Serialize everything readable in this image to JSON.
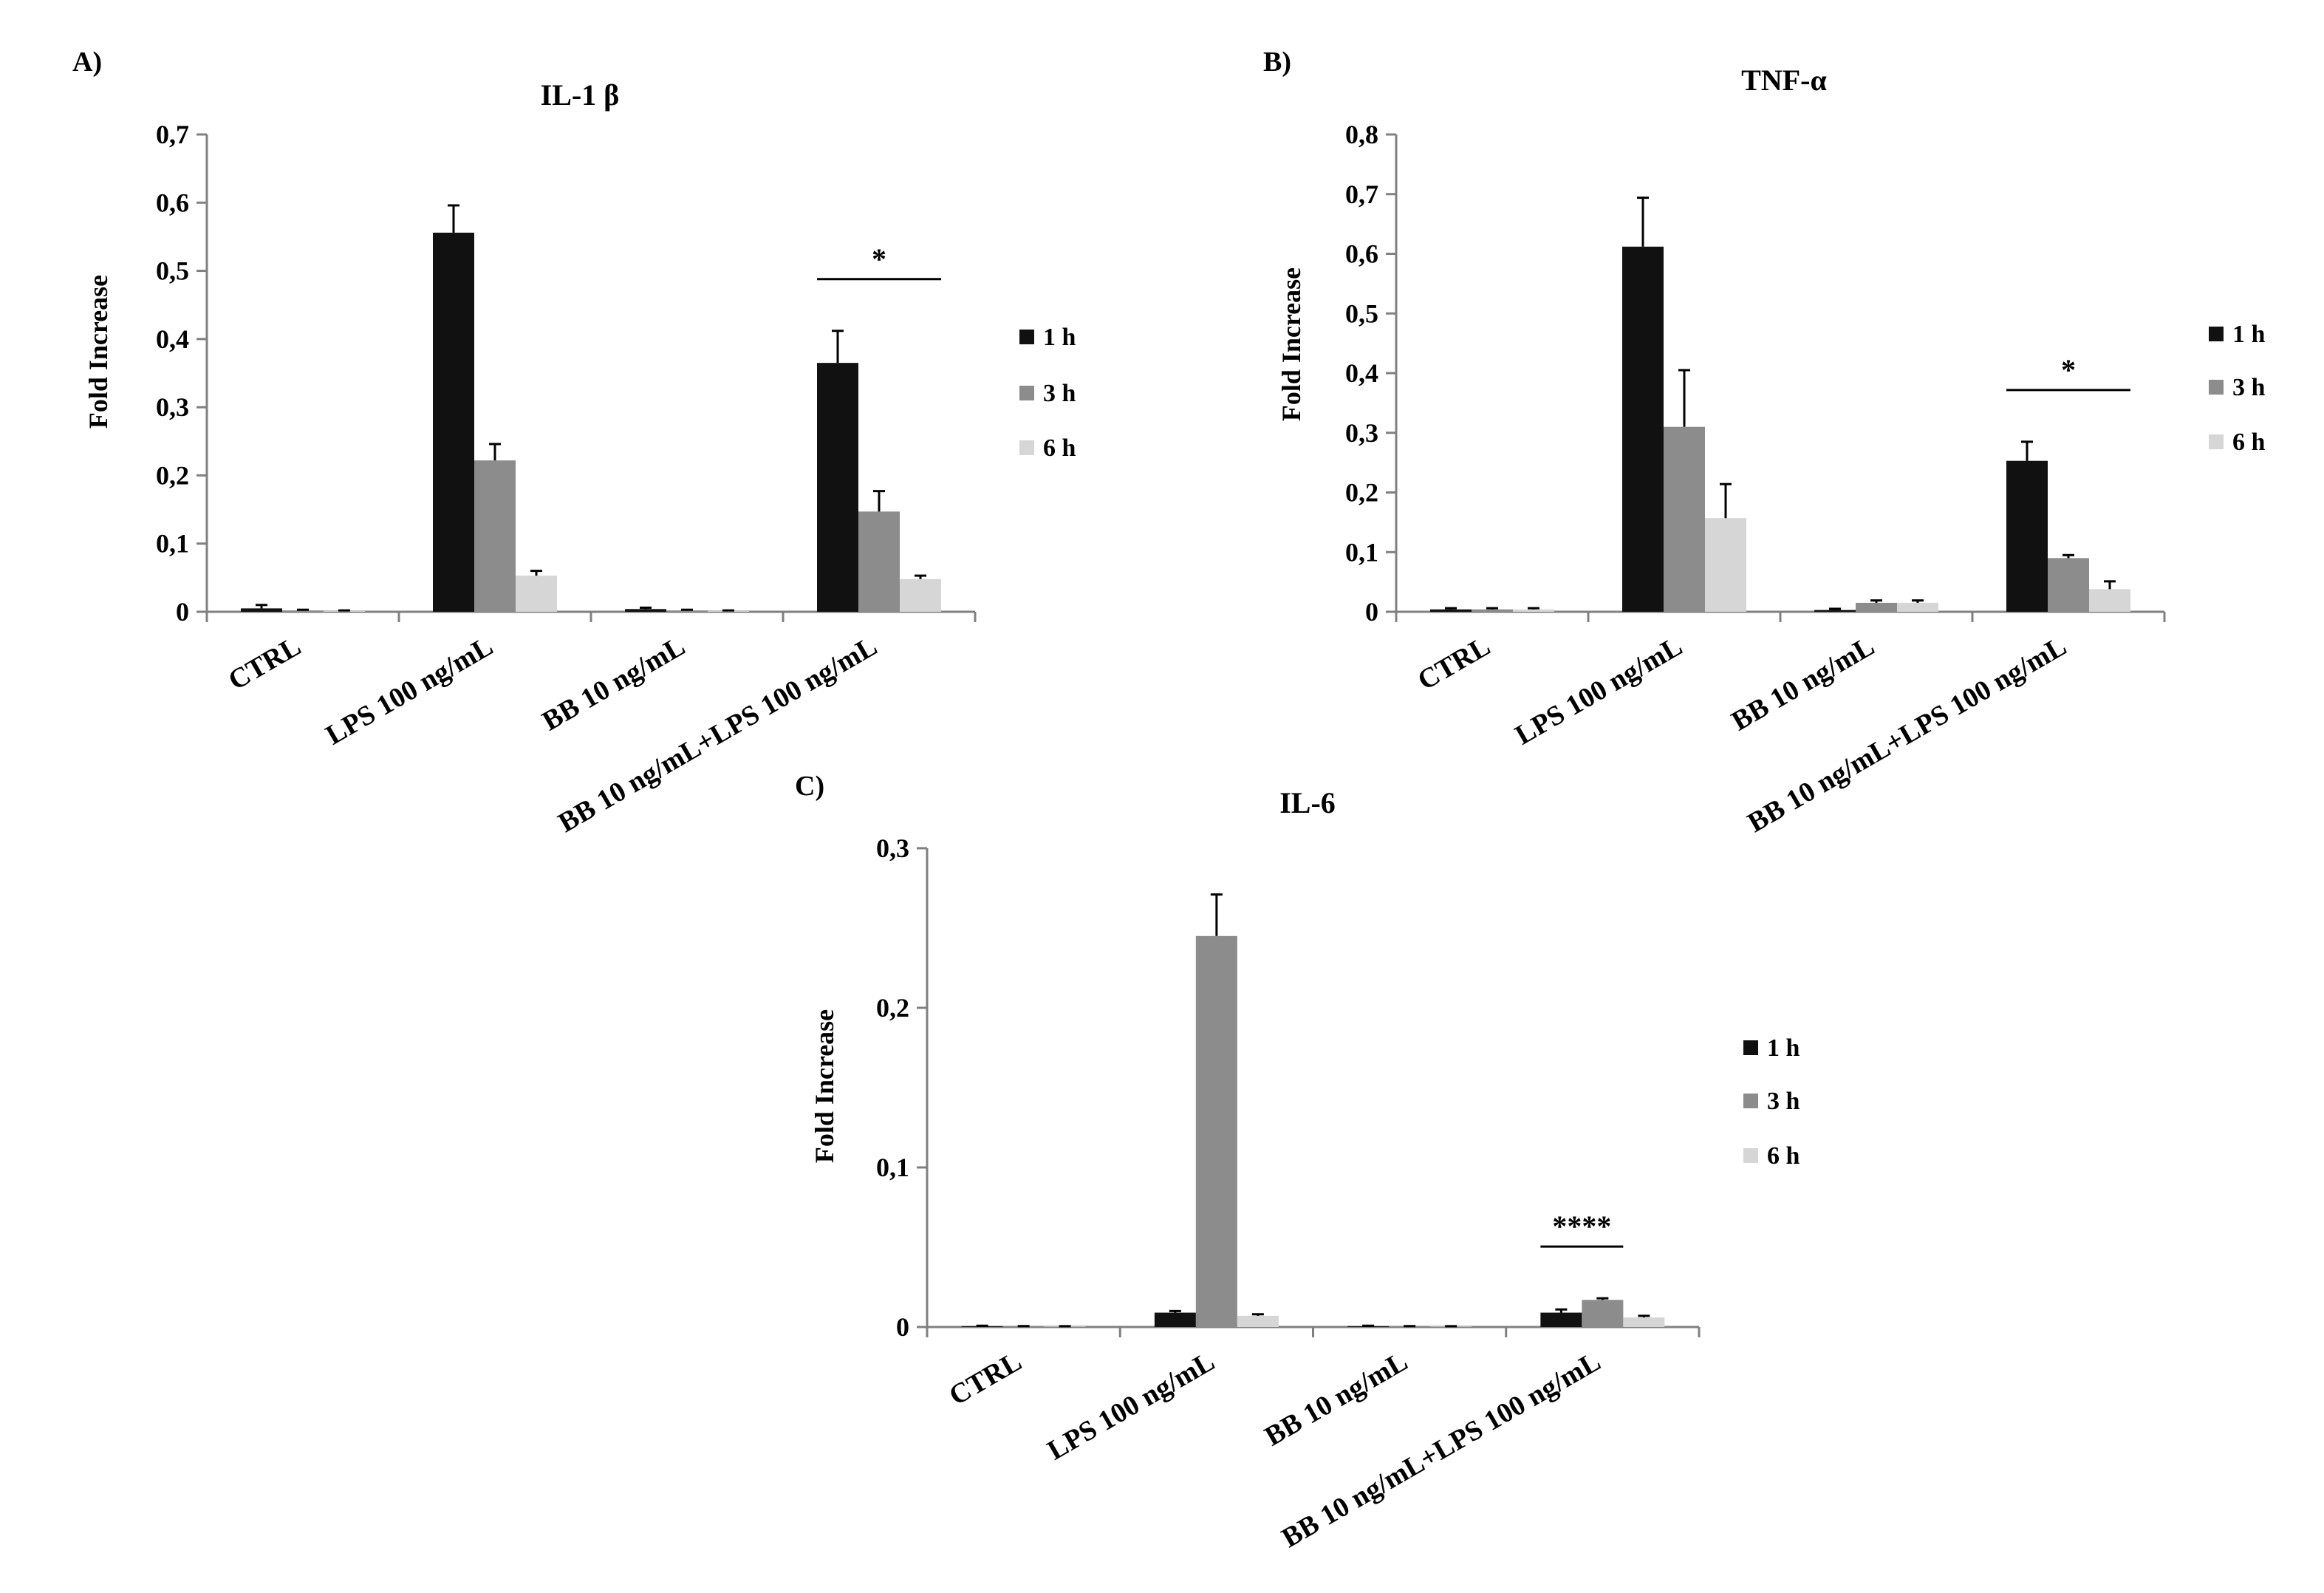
{
  "series_names": [
    "1 h",
    "3 h",
    "6 h"
  ],
  "colors": {
    "1 h": "#111111",
    "3 h": "#8c8c8c",
    "6 h": "#d6d6d6",
    "axis": "#808080",
    "text": "#000000"
  },
  "chart_data": [
    {
      "panel_label": "A)",
      "type": "bar",
      "title": "IL-1 β",
      "ylabel": "Fold Increase",
      "xlabel": "",
      "ylim": [
        0,
        0.7
      ],
      "yticks": [
        "0",
        "0,1",
        "0,2",
        "0,3",
        "0,4",
        "0,5",
        "0,6",
        "0,7"
      ],
      "categories": [
        "CTRL",
        "LPS 100 ng/mL",
        "BB 10 ng/mL",
        "BB 10 ng/mL+LPS 100 ng/mL"
      ],
      "series": [
        {
          "name": "1 h",
          "values": [
            0.005,
            0.556,
            0.004,
            0.365
          ],
          "errors": [
            0.005,
            0.04,
            0.002,
            0.047
          ]
        },
        {
          "name": "3 h",
          "values": [
            0.002,
            0.222,
            0.002,
            0.147
          ],
          "errors": [
            0.001,
            0.024,
            0.001,
            0.03
          ]
        },
        {
          "name": "6 h",
          "values": [
            0.001,
            0.053,
            0.001,
            0.048
          ],
          "errors": [
            0.001,
            0.007,
            0.001,
            0.005
          ]
        }
      ],
      "significance": {
        "category": 3,
        "span": [
          0,
          2
        ],
        "label": "*"
      }
    },
    {
      "panel_label": "B)",
      "type": "bar",
      "title": "TNF-α",
      "ylabel": "Fold Increase",
      "xlabel": "",
      "ylim": [
        0,
        0.8
      ],
      "yticks": [
        "0",
        "0,1",
        "0,2",
        "0,3",
        "0,4",
        "0,5",
        "0,6",
        "0,7",
        "0,8"
      ],
      "categories": [
        "CTRL",
        "LPS 100 ng/mL",
        "BB 10 ng/mL",
        "BB 10 ng/mL+LPS 100 ng/mL"
      ],
      "series": [
        {
          "name": "1 h",
          "values": [
            0.004,
            0.612,
            0.003,
            0.253
          ],
          "errors": [
            0.002,
            0.082,
            0.002,
            0.032
          ]
        },
        {
          "name": "3 h",
          "values": [
            0.004,
            0.31,
            0.015,
            0.09
          ],
          "errors": [
            0.002,
            0.095,
            0.004,
            0.005
          ]
        },
        {
          "name": "6 h",
          "values": [
            0.004,
            0.157,
            0.015,
            0.038
          ],
          "errors": [
            0.002,
            0.057,
            0.004,
            0.013
          ]
        }
      ],
      "significance": {
        "category": 3,
        "span": [
          0,
          2
        ],
        "label": "*"
      }
    },
    {
      "panel_label": "C)",
      "type": "bar",
      "title": "IL-6",
      "ylabel": "Fold Increase",
      "xlabel": "",
      "ylim": [
        0,
        0.3
      ],
      "yticks": [
        "0",
        "0,1",
        "0,2",
        "0,3"
      ],
      "categories": [
        "CTRL",
        "LPS 100 ng/mL",
        "BB 10 ng/mL",
        "BB 10 ng/mL+LPS 100 ng/mL"
      ],
      "series": [
        {
          "name": "1 h",
          "values": [
            0.0005,
            0.009,
            0.0005,
            0.009
          ],
          "errors": [
            0.0003,
            0.001,
            0.0003,
            0.002
          ]
        },
        {
          "name": "3 h",
          "values": [
            0.0004,
            0.245,
            0.0004,
            0.017
          ],
          "errors": [
            0.0002,
            0.026,
            0.0002,
            0.001
          ]
        },
        {
          "name": "6 h",
          "values": [
            0.0003,
            0.007,
            0.0003,
            0.006
          ],
          "errors": [
            0.0002,
            0.001,
            0.0002,
            0.001
          ]
        }
      ],
      "significance": {
        "category": 3,
        "span": [
          0,
          1
        ],
        "label": "****"
      }
    }
  ]
}
